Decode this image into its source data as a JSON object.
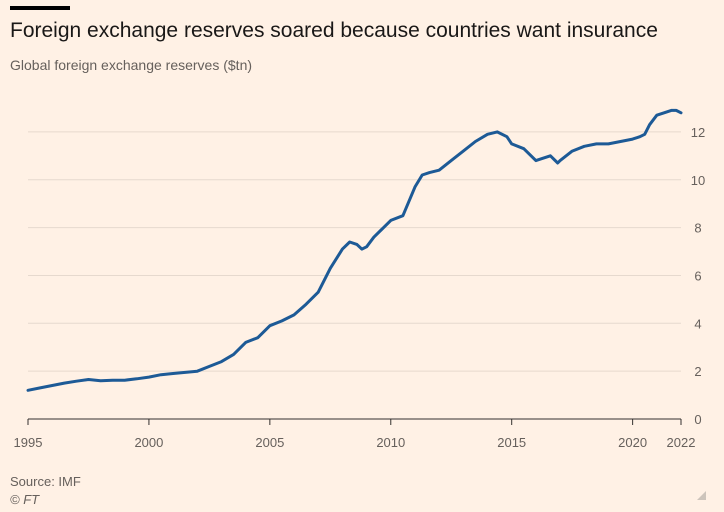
{
  "header": {
    "title": "Foreign exchange reserves soared because countries want insurance",
    "subtitle": "Global foreign exchange reserves ($tn)"
  },
  "footer": {
    "source": "Source: IMF",
    "copyright": "© FT"
  },
  "colors": {
    "background": "#fff1e5",
    "line": "#1d5a96",
    "grid": "#e6d9ce",
    "axis": "#66605c"
  },
  "chart_data": {
    "type": "line",
    "title": "Foreign exchange reserves soared because countries want insurance",
    "subtitle": "Global foreign exchange reserves ($tn)",
    "xlabel": "",
    "ylabel": "",
    "xlim": [
      1995,
      2022
    ],
    "ylim": [
      0,
      12
    ],
    "grid": true,
    "y_axis_side": "right",
    "x_ticks": [
      "1995",
      "2000",
      "2005",
      "2010",
      "2015",
      "2020",
      "2022"
    ],
    "x_tick_values": [
      1995,
      2000,
      2005,
      2010,
      2015,
      2020,
      2022
    ],
    "y_ticks": [
      "0",
      "2",
      "4",
      "6",
      "8",
      "10",
      "12"
    ],
    "y_tick_values": [
      0,
      2,
      4,
      6,
      8,
      10,
      12
    ],
    "series": [
      {
        "x": [
          1995.0,
          1995.5,
          1996.0,
          1996.5,
          1997.0,
          1997.5,
          1998.0,
          1998.5,
          1999.0,
          1999.5,
          2000.0,
          2000.5,
          2001.0,
          2001.5,
          2002.0,
          2002.5,
          2003.0,
          2003.5,
          2004.0,
          2004.5,
          2005.0,
          2005.5,
          2006.0,
          2006.5,
          2007.0,
          2007.5,
          2008.0,
          2008.3,
          2008.6,
          2008.8,
          2009.0,
          2009.3,
          2009.6,
          2010.0,
          2010.5,
          2011.0,
          2011.3,
          2011.6,
          2012.0,
          2012.5,
          2013.0,
          2013.5,
          2014.0,
          2014.4,
          2014.8,
          2015.0,
          2015.5,
          2016.0,
          2016.3,
          2016.6,
          2016.9,
          2017.0,
          2017.5,
          2018.0,
          2018.5,
          2019.0,
          2019.5,
          2020.0,
          2020.3,
          2020.5,
          2020.7,
          2021.0,
          2021.3,
          2021.6,
          2021.8,
          2022.0
        ],
        "y": [
          1.2,
          1.3,
          1.4,
          1.5,
          1.58,
          1.65,
          1.6,
          1.62,
          1.62,
          1.68,
          1.75,
          1.85,
          1.9,
          1.95,
          2.0,
          2.2,
          2.4,
          2.7,
          3.2,
          3.4,
          3.9,
          4.1,
          4.35,
          4.8,
          5.3,
          6.3,
          7.1,
          7.4,
          7.3,
          7.1,
          7.2,
          7.6,
          7.9,
          8.3,
          8.5,
          9.7,
          10.2,
          10.3,
          10.4,
          10.8,
          11.2,
          11.6,
          11.9,
          12.0,
          11.8,
          11.5,
          11.3,
          10.8,
          10.9,
          11.0,
          10.7,
          10.8,
          11.2,
          11.4,
          11.5,
          11.5,
          11.6,
          11.7,
          11.8,
          11.9,
          12.3,
          12.7,
          12.8,
          12.9,
          12.9,
          12.8
        ]
      }
    ]
  }
}
